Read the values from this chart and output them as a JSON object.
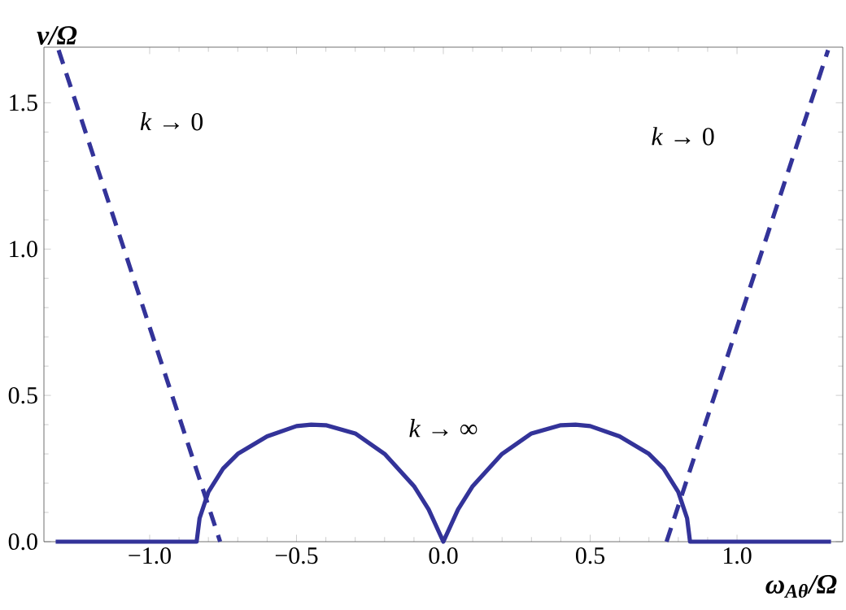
{
  "chart_data": {
    "type": "line",
    "xlabel": "ω$_{Aθ}$/Ω",
    "ylabel": "ν/Ω",
    "xlim": [
      -1.36,
      1.36
    ],
    "ylim": [
      0,
      1.69
    ],
    "xticks": [
      {
        "value": -1.0,
        "label": "−1.0"
      },
      {
        "value": -0.5,
        "label": "−0.5"
      },
      {
        "value": 0,
        "label": "0.0"
      },
      {
        "value": 0.5,
        "label": "0.5"
      },
      {
        "value": 1.0,
        "label": "1.0"
      }
    ],
    "yticks": [
      {
        "value": 0,
        "label": "0.0"
      },
      {
        "value": 0.5,
        "label": "0.5"
      },
      {
        "value": 1.0,
        "label": "1.0"
      },
      {
        "value": 1.5,
        "label": "1.5"
      }
    ],
    "series": [
      {
        "color": "#333399",
        "line_style": "solid",
        "x": [
          -1.32,
          -0.84,
          -0.84,
          -0.83,
          -0.8,
          -0.75,
          -0.7,
          -0.6,
          -0.5,
          -0.45,
          -0.4,
          -0.3,
          -0.2,
          -0.1,
          -0.05,
          0,
          0.05,
          0.1,
          0.2,
          0.3,
          0.4,
          0.45,
          0.5,
          0.6,
          0.7,
          0.75,
          0.8,
          0.83,
          0.84,
          0.84,
          1.32
        ],
        "values": [
          0,
          0,
          0,
          0.08,
          0.17,
          0.25,
          0.3,
          0.36,
          0.395,
          0.4,
          0.398,
          0.37,
          0.3,
          0.19,
          0.11,
          0,
          0.11,
          0.19,
          0.3,
          0.37,
          0.398,
          0.4,
          0.395,
          0.36,
          0.3,
          0.25,
          0.17,
          0.08,
          0,
          0,
          0
        ]
      },
      {
        "color": "#333399",
        "line_style": "dashed",
        "x": [
          -1.31,
          -0.76
        ],
        "values": [
          1.68,
          0
        ]
      },
      {
        "color": "#333399",
        "line_style": "dashed",
        "x": [
          0.76,
          1.31
        ],
        "values": [
          0,
          1.68
        ]
      }
    ],
    "annotations": [
      "*k* → 0",
      "*k* → 0",
      "*k* → ∞"
    ],
    "grid": false,
    "marker": "none"
  }
}
